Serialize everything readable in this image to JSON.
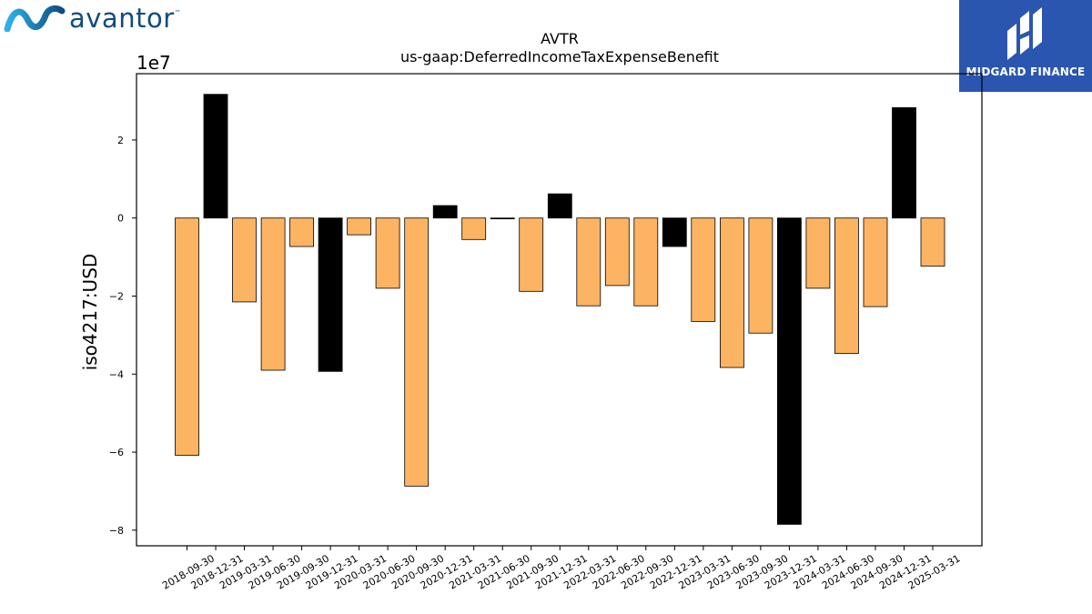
{
  "brand": {
    "left_logo_text": "avantor",
    "left_logo_tm": "™",
    "right_logo_text": "MIDGARD FINANCE",
    "right_logo_bg": "#2a56b0"
  },
  "chart_data": {
    "type": "bar",
    "title": "AVTR",
    "subtitle": "us-gaap:DeferredIncomeTaxExpenseBenefit",
    "ylabel": "iso4217:USD",
    "xlabel": "",
    "y_scale_note": "1e7",
    "ylim": [
      -8.4,
      3.7
    ],
    "y_ticks": [
      -8,
      -6,
      -4,
      -2,
      0,
      2
    ],
    "categories": [
      "2018-09-30",
      "2018-12-31",
      "2019-03-31",
      "2019-06-30",
      "2019-09-30",
      "2019-12-31",
      "2020-03-31",
      "2020-06-30",
      "2020-09-30",
      "2020-12-31",
      "2021-03-31",
      "2021-06-30",
      "2021-09-30",
      "2021-12-31",
      "2022-03-31",
      "2022-06-30",
      "2022-09-30",
      "2022-12-31",
      "2023-03-31",
      "2023-06-30",
      "2023-09-30",
      "2023-12-31",
      "2024-03-31",
      "2024-06-30",
      "2024-09-30",
      "2024-12-31",
      "2025-03-31"
    ],
    "values": [
      -6.08,
      3.17,
      -2.15,
      -3.9,
      -0.73,
      -3.93,
      -0.43,
      -1.8,
      -6.87,
      0.32,
      -0.55,
      -0.02,
      -1.88,
      0.62,
      -2.25,
      -1.73,
      -2.25,
      -0.73,
      -2.65,
      -3.83,
      -2.95,
      -7.85,
      -1.8,
      -3.47,
      -2.27,
      2.83,
      -1.23
    ],
    "highlight": [
      false,
      true,
      false,
      false,
      false,
      true,
      false,
      false,
      false,
      true,
      false,
      true,
      false,
      true,
      false,
      false,
      false,
      true,
      false,
      false,
      false,
      true,
      false,
      false,
      false,
      true,
      false
    ],
    "colors": {
      "normal": "#fdb462",
      "highlight": "#000000",
      "edge": "#000000"
    },
    "grid": false,
    "legend": "none"
  }
}
